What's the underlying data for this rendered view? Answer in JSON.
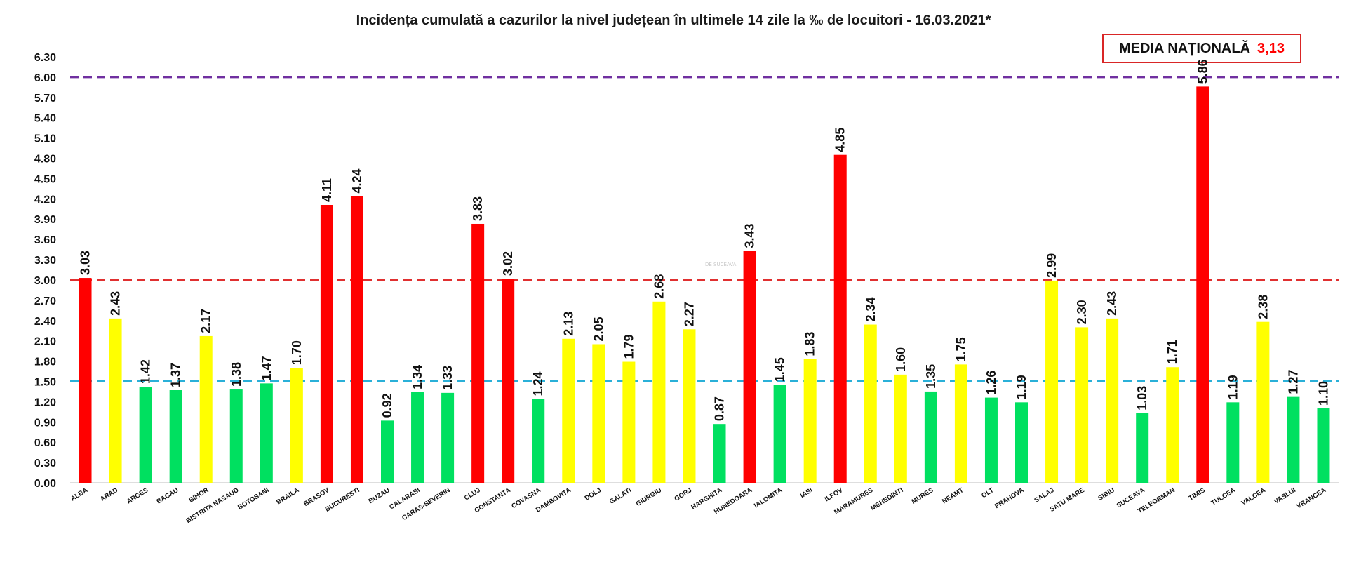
{
  "chart_data": {
    "type": "bar",
    "title": "Incidența cumulată a cazurilor la nivel județean în ultimele 14 zile la ‰ de locuitori - 16.03.2021*",
    "media_nationala": {
      "label": "MEDIA NAȚIONALĂ",
      "value": "3,13"
    },
    "watermark": "DE SUCEAVA",
    "ylim": [
      0,
      6.3
    ],
    "yticks": [
      "0.00",
      "0.30",
      "0.60",
      "0.90",
      "1.20",
      "1.50",
      "1.80",
      "2.10",
      "2.40",
      "2.70",
      "3.00",
      "3.30",
      "3.60",
      "3.90",
      "4.20",
      "4.50",
      "4.80",
      "5.10",
      "5.40",
      "5.70",
      "6.00",
      "6.30"
    ],
    "grid": false,
    "reference_lines": [
      {
        "value": 6.0,
        "color": "#7030a0"
      },
      {
        "value": 3.0,
        "color": "#e03030"
      },
      {
        "value": 1.5,
        "color": "#2ab0d8"
      }
    ],
    "colors": {
      "red": "#ff0000",
      "yellow": "#ffff00",
      "green": "#00e060"
    },
    "categories": [
      "ALBA",
      "ARAD",
      "ARGES",
      "BACAU",
      "BIHOR",
      "BISTRITA NASAUD",
      "BOTOSANI",
      "BRAILA",
      "BRASOV",
      "BUCURESTI",
      "BUZAU",
      "CALARASI",
      "CARAS-SEVERIN",
      "CLUJ",
      "CONSTANTA",
      "COVASNA",
      "DAMBOVITA",
      "DOLJ",
      "GALATI",
      "GIURGIU",
      "GORJ",
      "HARGHITA",
      "HUNEDOARA",
      "IALOMITA",
      "IASI",
      "ILFOV",
      "MARAMURES",
      "MEHEDINTI",
      "MURES",
      "NEAMT",
      "OLT",
      "PRAHOVA",
      "SALAJ",
      "SATU MARE",
      "SIBIU",
      "SUCEAVA",
      "TELEORMAN",
      "TIMIS",
      "TULCEA",
      "VALCEA",
      "VASLUI",
      "VRANCEA"
    ],
    "values": [
      3.03,
      2.43,
      1.42,
      1.37,
      2.17,
      1.38,
      1.47,
      1.7,
      4.11,
      4.24,
      0.92,
      1.34,
      1.33,
      3.83,
      3.02,
      1.24,
      2.13,
      2.05,
      1.79,
      2.68,
      2.27,
      0.87,
      3.43,
      1.45,
      1.83,
      4.85,
      2.34,
      1.6,
      1.35,
      1.75,
      1.26,
      1.19,
      2.99,
      2.3,
      2.43,
      1.03,
      1.71,
      5.86,
      1.19,
      2.38,
      1.27,
      1.1
    ],
    "labels": [
      "3.03",
      "2.43",
      "1.42",
      "1.37",
      "2.17",
      "1.38",
      "1.47",
      "1.70",
      "4.11",
      "4.24",
      "0.92",
      "1.34",
      "1.33",
      "3.83",
      "3.02",
      "1.24",
      "2.13",
      "2.05",
      "1.79",
      "2.68",
      "2.27",
      "0.87",
      "3.43",
      "1.45",
      "1.83",
      "4.85",
      "2.34",
      "1.60",
      "1.35",
      "1.75",
      "1.26",
      "1.19",
      "2.99",
      "2.30",
      "2.43",
      "1.03",
      "1.71",
      "5.86",
      "1.19",
      "2.38",
      "1.27",
      "1.10"
    ],
    "bar_colors": [
      "red",
      "yellow",
      "green",
      "green",
      "yellow",
      "green",
      "green",
      "yellow",
      "red",
      "red",
      "green",
      "green",
      "green",
      "red",
      "red",
      "green",
      "yellow",
      "yellow",
      "yellow",
      "yellow",
      "yellow",
      "green",
      "red",
      "green",
      "yellow",
      "red",
      "yellow",
      "yellow",
      "green",
      "yellow",
      "green",
      "green",
      "yellow",
      "yellow",
      "yellow",
      "green",
      "yellow",
      "red",
      "green",
      "yellow",
      "green",
      "green"
    ]
  }
}
